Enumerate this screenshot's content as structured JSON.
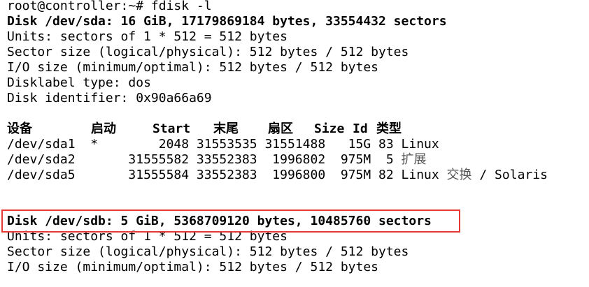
{
  "terminal": {
    "prompt": "root@controller:~# fdisk -l",
    "sda": {
      "title": "Disk /dev/sda: 16 GiB, 17179869184 bytes, 33554432 sectors",
      "units": "Units: sectors of 1 * 512 = 512 bytes",
      "sector_size": "Sector size (logical/physical): 512 bytes / 512 bytes",
      "io_size": "I/O size (minimum/optimal): 512 bytes / 512 bytes",
      "label_type": "Disklabel type: dos",
      "identifier": "Disk identifier: 0x90a66a69"
    },
    "table": {
      "headers": [
        "设备",
        "启动",
        "Start",
        "末尾",
        "扇区",
        "Size",
        "Id",
        "类型"
      ],
      "rows": [
        {
          "text": "/dev/sda1  *        2048 31553535 31551488   15G 83 Linux",
          "type_extra": ""
        },
        {
          "text": "/dev/sda2       31555582 33552383  1996802  975M  5 ",
          "type_extra": "扩展"
        },
        {
          "text": "/dev/sda5       31555584 33552383  1996800  975M 82 Linux ",
          "type_extra": "交换",
          "type_tail": " / Solaris"
        }
      ]
    },
    "sdb": {
      "title": "Disk /dev/sdb: 5 GiB, 5368709120 bytes, 10485760 sectors",
      "units": "Units: sectors of 1 * 512 = 512 bytes",
      "sector_size": "Sector size (logical/physical): 512 bytes / 512 bytes",
      "io_size": "I/O size (minimum/optimal): 512 bytes / 512 bytes"
    },
    "highlight_color": "#e53935"
  }
}
